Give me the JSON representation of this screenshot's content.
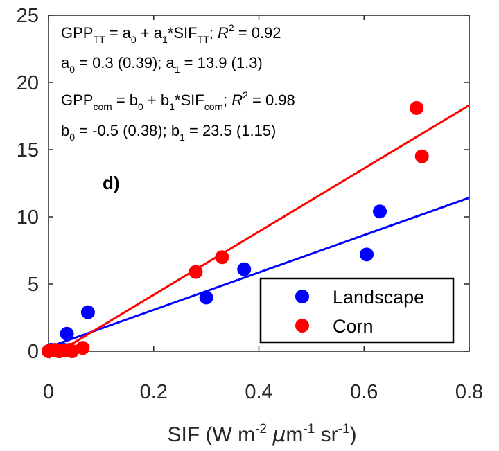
{
  "chart_data": {
    "type": "scatter",
    "panel_label": "d)",
    "xlim": [
      0,
      0.8
    ],
    "ylim": [
      0,
      25
    ],
    "xticks": [
      "0",
      "0.2",
      "0.4",
      "0.6",
      "0.8"
    ],
    "yticks": [
      "0",
      "5",
      "10",
      "15",
      "20",
      "25"
    ],
    "xticks_values": [
      0,
      0.2,
      0.4,
      0.6,
      0.8
    ],
    "yticks_values": [
      0,
      5,
      10,
      15,
      20,
      25
    ],
    "xlabel": {
      "prefix": "SIF (W m",
      "sup1": "-2",
      "mid1": " ",
      "mu": "μ",
      "mid2": "m",
      "sup2": "-1",
      "mid3": " sr",
      "sup3": "-1",
      "suffix": ")"
    },
    "ylabel": "",
    "grid": false,
    "legend_position": "bottom-right",
    "series": [
      {
        "name": "Landscape",
        "color": "#0000ff",
        "points": [
          [
            0.005,
            0.1
          ],
          [
            0.01,
            0.05
          ],
          [
            0.02,
            0.0
          ],
          [
            0.03,
            0.1
          ],
          [
            0.035,
            1.3
          ],
          [
            0.075,
            2.9
          ],
          [
            0.3,
            4.0
          ],
          [
            0.372,
            6.1
          ],
          [
            0.605,
            7.2
          ],
          [
            0.63,
            10.4
          ]
        ],
        "fit": {
          "intercept": 0.3,
          "slope": 13.9
        }
      },
      {
        "name": "Corn",
        "color": "#ff0000",
        "points": [
          [
            0.0,
            0.0
          ],
          [
            0.005,
            0.05
          ],
          [
            0.012,
            0.1
          ],
          [
            0.02,
            0.0
          ],
          [
            0.03,
            0.05
          ],
          [
            0.04,
            0.1
          ],
          [
            0.045,
            0.0
          ],
          [
            0.065,
            0.25
          ],
          [
            0.28,
            5.9
          ],
          [
            0.33,
            7.0
          ],
          [
            0.7,
            18.1
          ],
          [
            0.71,
            14.5
          ]
        ],
        "fit": {
          "intercept": -0.5,
          "slope": 23.5
        }
      }
    ],
    "annotations": {
      "line1": {
        "a": "GPP",
        "a_sub": "TT",
        "b": " = a",
        "b_sub": "0",
        "c": " + a",
        "c_sub": "1",
        "d": "*SIF",
        "d_sub": "TT",
        "e": "; ",
        "f": "R",
        "f_sup": "2",
        "g": " = 0.92"
      },
      "line2": {
        "a": "a",
        "a_sub": "0",
        "b": " = 0.3 (0.39); a",
        "b_sub": "1",
        "c": " = 13.9 (1.3)"
      },
      "line3": {
        "a": "GPP",
        "a_sub": "corn",
        "b": " = b",
        "b_sub": "0",
        "c": " + b",
        "c_sub": "1",
        "d": "*SIF",
        "d_sub": "corn",
        "e": "; ",
        "f": "R",
        "f_sup": "2",
        "g": " = 0.98"
      },
      "line4": {
        "a": "b",
        "a_sub": "0",
        "b": " = -0.5 (0.38); b",
        "b_sub": "1",
        "c": " = 23.5 (1.15)"
      }
    }
  }
}
